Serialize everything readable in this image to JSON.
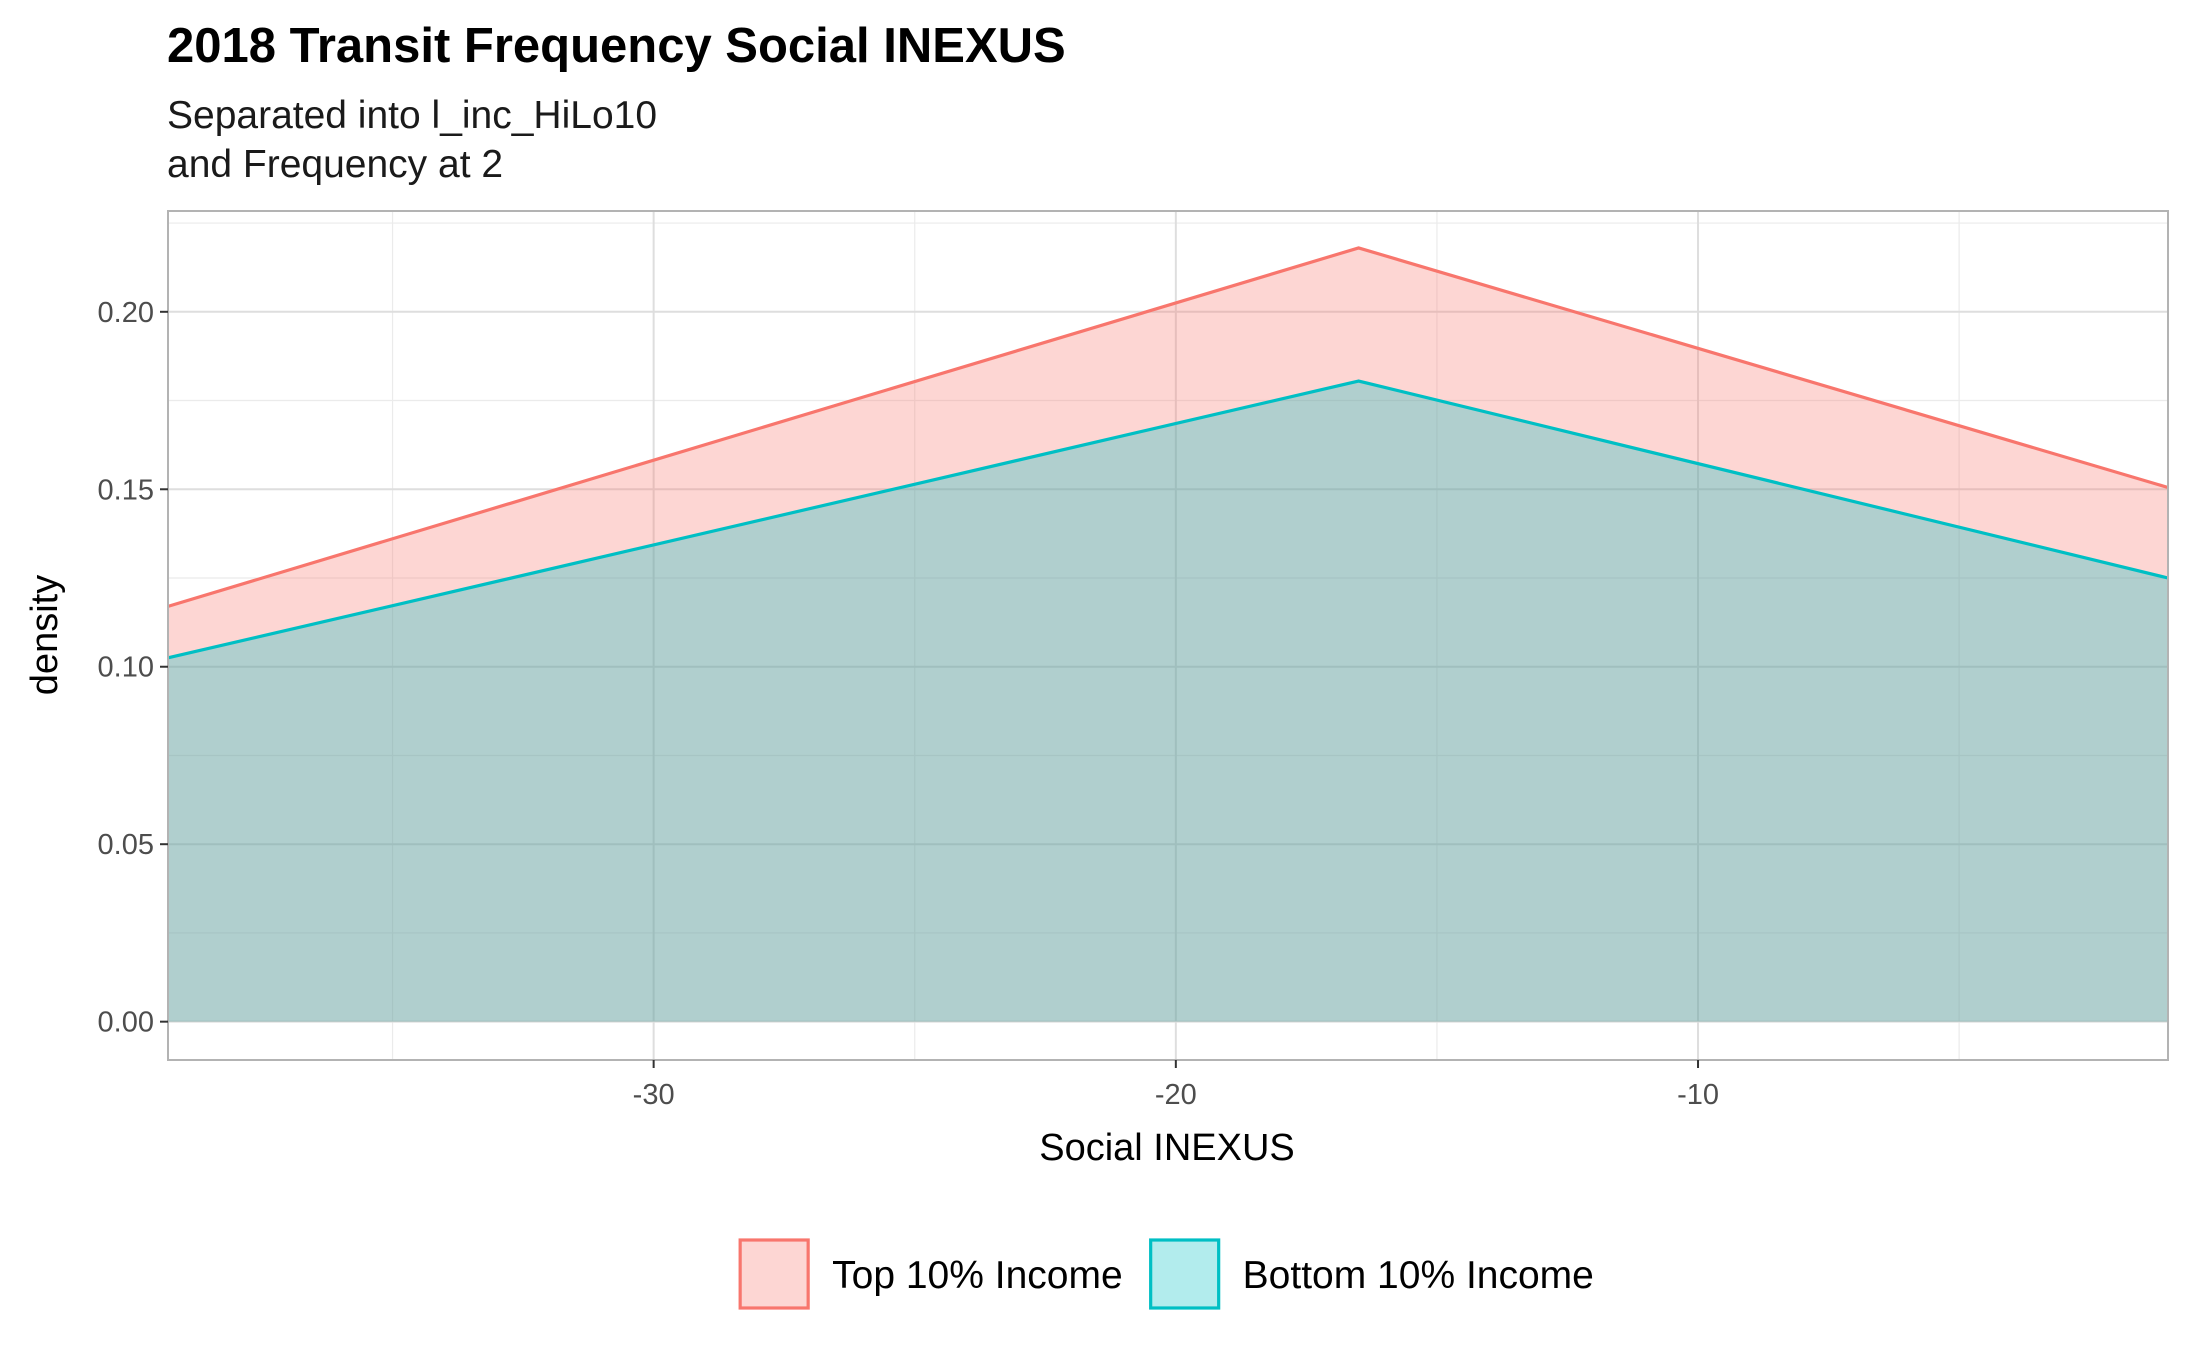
{
  "chart_data": {
    "type": "area",
    "title": "2018 Transit Frequency Social INEXUS",
    "subtitle_lines": [
      "Separated into l_inc_HiLo10",
      "and Frequency at 2"
    ],
    "xlabel": "Social INEXUS",
    "ylabel": "density",
    "xlim": [
      -39.3,
      -1.0
    ],
    "ylim": [
      -0.0108,
      0.2284
    ],
    "x_ticks": [
      -30,
      -20,
      -10
    ],
    "x_tick_labels": [
      "-30",
      "-20",
      "-10"
    ],
    "y_ticks": [
      0.0,
      0.05,
      0.1,
      0.15,
      0.2
    ],
    "y_tick_labels": [
      "0.00",
      "0.05",
      "0.10",
      "0.15",
      "0.20"
    ],
    "grid": true,
    "legend_position": "bottom",
    "series": [
      {
        "name": "Top 10% Income",
        "line_color": "#F8766D",
        "fill_color": "#F8766D",
        "fill_opacity": 0.3,
        "points": [
          {
            "x": -39.3,
            "y": 0.117
          },
          {
            "x": -16.5,
            "y": 0.218
          },
          {
            "x": -1.0,
            "y": 0.1505
          }
        ]
      },
      {
        "name": "Bottom 10% Income",
        "line_color": "#00BFC4",
        "fill_color": "#00BFC4",
        "fill_opacity": 0.3,
        "points": [
          {
            "x": -39.3,
            "y": 0.1025
          },
          {
            "x": -16.5,
            "y": 0.1805
          },
          {
            "x": -1.0,
            "y": 0.125
          }
        ]
      }
    ]
  }
}
